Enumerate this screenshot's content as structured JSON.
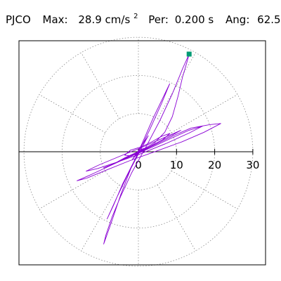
{
  "header": {
    "station": "PJCO",
    "max_label": "Max:",
    "max_value": "28.9 cm/s",
    "max_unit_sup": "2",
    "per_label": "Per:",
    "per_value": "0.200 s",
    "ang_label": "Ang:",
    "ang_value": "62.5"
  },
  "chart_data": {
    "type": "line",
    "title": "PJCO   Max:  28.9 cm/s²  Per:  0.200 s   Ang:  62.5",
    "xlabel": "",
    "ylabel": "",
    "xlim": [
      -30,
      30
    ],
    "ylim": [
      -30,
      30
    ],
    "grid": true,
    "polar_rings": [
      10,
      20,
      30
    ],
    "polar_spokes_deg": [
      0,
      30,
      60,
      90,
      120,
      150,
      180,
      210,
      240,
      270,
      300,
      330
    ],
    "x_ticks": [
      0,
      10,
      20,
      30
    ],
    "x_tick_labels": [
      "0",
      "10",
      "20",
      "30"
    ],
    "max_point": {
      "x": 13.3,
      "y": 25.6,
      "magnitude": 28.9,
      "angle_deg": 62.5
    },
    "colors": {
      "orbit": "#8a00d4",
      "max_marker": "#009b74",
      "grid": "#8a8a8a",
      "frame": "#000000"
    },
    "series": [
      {
        "values": [
          [
            0,
            0
          ],
          [
            1.2,
            0.6
          ],
          [
            2.8,
            1.1
          ],
          [
            1.5,
            0.2
          ],
          [
            -1.8,
            -1.1
          ],
          [
            -3.6,
            -0.9
          ],
          [
            -2.1,
            0.4
          ],
          [
            0.8,
            1.3
          ],
          [
            3.5,
            2.6
          ],
          [
            6.2,
            4.1
          ],
          [
            8.3,
            4.8
          ],
          [
            6.4,
            3.2
          ],
          [
            2.1,
            0.9
          ],
          [
            -2.6,
            -1.4
          ],
          [
            -6.3,
            -3.1
          ],
          [
            -9.1,
            -4.2
          ],
          [
            -7.4,
            -3.6
          ],
          [
            -3.2,
            -1.5
          ],
          [
            1.6,
            0.5
          ],
          [
            5.4,
            2.3
          ],
          [
            9.6,
            4.4
          ],
          [
            13.8,
            6.2
          ],
          [
            18.7,
            7.1
          ],
          [
            21.6,
            7.4
          ],
          [
            17.2,
            5.1
          ],
          [
            11.4,
            2.6
          ],
          [
            4.8,
            0.2
          ],
          [
            -2.4,
            -2.4
          ],
          [
            -8.6,
            -4.9
          ],
          [
            -13.5,
            -6.9
          ],
          [
            -16.1,
            -7.6
          ],
          [
            -12.9,
            -6.2
          ],
          [
            -7.5,
            -3.7
          ],
          [
            -1.8,
            -1.1
          ],
          [
            3.4,
            1.1
          ],
          [
            8.5,
            3.5
          ],
          [
            13.2,
            5.6
          ],
          [
            16.8,
            6.7
          ],
          [
            13.3,
            4.9
          ],
          [
            7.1,
            2.1
          ],
          [
            0.4,
            -0.6
          ],
          [
            -5.8,
            -2.8
          ],
          [
            -10.7,
            -4.4
          ],
          [
            -13.7,
            -5.1
          ],
          [
            -10.4,
            -3.5
          ],
          [
            -4.9,
            -1.2
          ],
          [
            1.5,
            1.4
          ],
          [
            7.2,
            3.9
          ],
          [
            11.1,
            5.6
          ],
          [
            9.1,
            4.5
          ],
          [
            4.1,
            1.9
          ],
          [
            -1.4,
            -0.8
          ],
          [
            -5.6,
            -2.7
          ],
          [
            -3.6,
            -1.6
          ],
          [
            0.8,
            0.4
          ],
          [
            4.2,
            2.3
          ],
          [
            6.9,
            5.1
          ],
          [
            8.9,
            9.2
          ],
          [
            10.4,
            14.6
          ],
          [
            11.6,
            19.7
          ],
          [
            12.7,
            23.4
          ],
          [
            13.3,
            25.6
          ],
          [
            11.6,
            21.8
          ],
          [
            8.9,
            15.2
          ],
          [
            5.6,
            8.1
          ],
          [
            2.1,
            1.5
          ],
          [
            -1.8,
            -5.6
          ],
          [
            -4.7,
            -11.8
          ],
          [
            -6.9,
            -17.1
          ],
          [
            -8.5,
            -21.8
          ],
          [
            -9.1,
            -24.2
          ],
          [
            -7.1,
            -18.6
          ],
          [
            -4.6,
            -11.2
          ],
          [
            -1.9,
            -4.2
          ],
          [
            1.1,
            2.5
          ],
          [
            3.9,
            8.9
          ],
          [
            6.4,
            14.1
          ],
          [
            8.2,
            17.8
          ],
          [
            6.1,
            12.7
          ],
          [
            2.9,
            5.6
          ],
          [
            -0.8,
            -1.8
          ],
          [
            -4.1,
            -8.4
          ],
          [
            -6.6,
            -14.2
          ],
          [
            -8.2,
            -17.6
          ],
          [
            -5.7,
            -12.1
          ],
          [
            -2.4,
            -5.2
          ],
          [
            0.9,
            1.1
          ],
          [
            2.6,
            4.2
          ],
          [
            1.2,
            2.1
          ],
          [
            -0.5,
            -0.4
          ],
          [
            -1.7,
            -2.2
          ],
          [
            -0.4,
            -0.6
          ],
          [
            0.9,
            0.7
          ],
          [
            1.6,
            0.9
          ],
          [
            0.6,
            0.2
          ],
          [
            -0.8,
            -0.6
          ],
          [
            -1.9,
            -1.2
          ],
          [
            -0.7,
            -0.4
          ],
          [
            0.5,
            0.3
          ],
          [
            0.2,
            0.1
          ]
        ]
      }
    ]
  }
}
